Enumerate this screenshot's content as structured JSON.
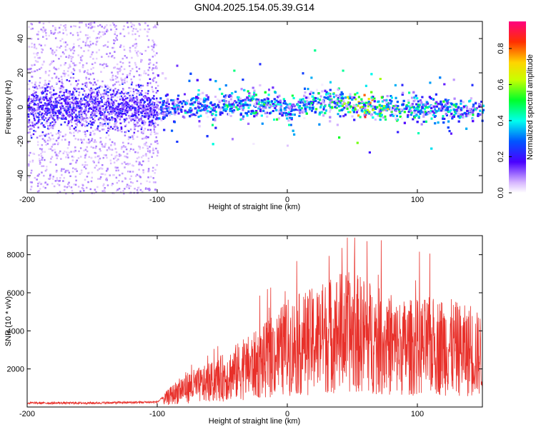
{
  "title": "GN04.2025.154.05.39.G14",
  "chart_data": [
    {
      "type": "heatmap",
      "xlabel": "Height of straight line (km)",
      "ylabel": "Frequency (Hz)",
      "xlim": [
        -200,
        150
      ],
      "ylim": [
        -50,
        50
      ],
      "xticks": [
        -200,
        -100,
        0,
        100
      ],
      "yticks": [
        -40,
        -20,
        0,
        20,
        40
      ],
      "colorbar": {
        "label": "Normalized spectral amplitude",
        "range": [
          0.0,
          0.95
        ],
        "ticks": [
          0.0,
          0.2,
          0.4,
          0.6,
          0.8
        ]
      },
      "ridge": {
        "description_points": [
          {
            "x": -100,
            "y": 0,
            "amp": 0.35
          },
          {
            "x": -80,
            "y": 1,
            "amp": 0.4
          },
          {
            "x": -60,
            "y": 2,
            "amp": 0.45
          },
          {
            "x": -40,
            "y": 3,
            "amp": 0.5
          },
          {
            "x": -20,
            "y": 2,
            "amp": 0.55
          },
          {
            "x": 0,
            "y": -1,
            "amp": 0.45
          },
          {
            "x": 20,
            "y": 4,
            "amp": 0.55
          },
          {
            "x": 40,
            "y": 3,
            "amp": 0.6
          },
          {
            "x": 60,
            "y": 0,
            "amp": 0.85
          },
          {
            "x": 80,
            "y": 0,
            "amp": 0.6
          },
          {
            "x": 100,
            "y": 0,
            "amp": 0.5
          },
          {
            "x": 120,
            "y": -1,
            "amp": 0.5
          },
          {
            "x": 150,
            "y": -2,
            "amp": 0.45
          }
        ]
      }
    },
    {
      "type": "line",
      "xlabel": "Height of straight line (km)",
      "ylabel": "SNR (10 * v/v)",
      "xlim": [
        -200,
        150
      ],
      "ylim": [
        0,
        9000
      ],
      "xticks": [
        -200,
        -100,
        0,
        100
      ],
      "yticks": [
        2000,
        4000,
        6000,
        8000
      ],
      "color": "#e8302a",
      "envelope": {
        "x": [
          -200,
          -150,
          -100,
          -90,
          -80,
          -60,
          -40,
          -20,
          0,
          20,
          40,
          60,
          80,
          100,
          120,
          150
        ],
        "y": [
          150,
          150,
          200,
          700,
          1200,
          1500,
          2200,
          2800,
          3800,
          4200,
          4800,
          4600,
          3800,
          3800,
          3900,
          3300
        ]
      }
    }
  ]
}
